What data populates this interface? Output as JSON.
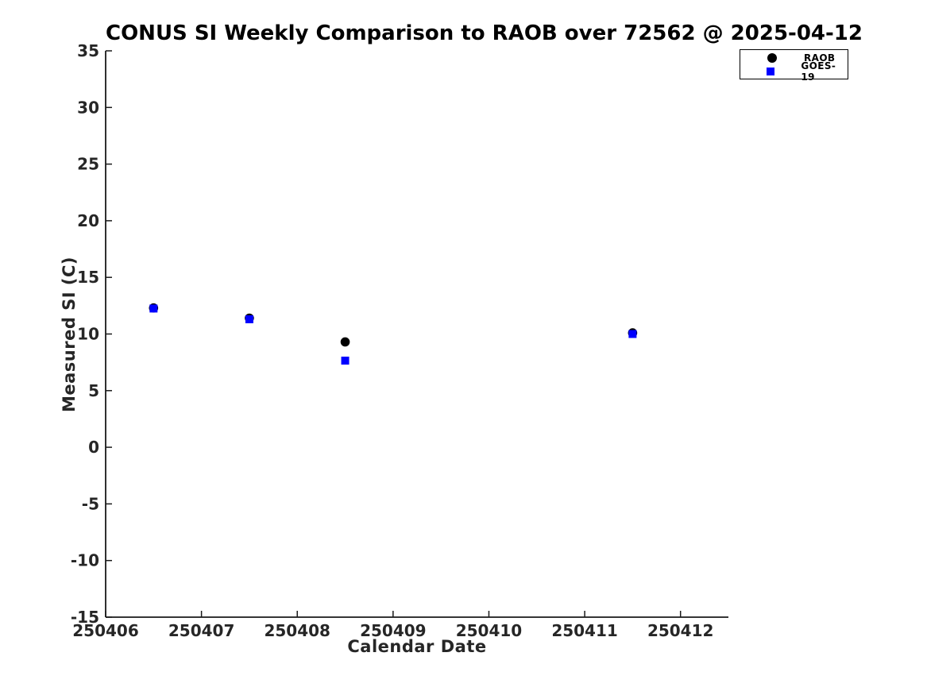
{
  "page": {
    "background": "#ffffff"
  },
  "chart_data": {
    "type": "scatter",
    "title": "CONUS SI Weekly Comparison to RAOB over 72562 @ 2025-04-12",
    "xlabel": "Calendar Date",
    "ylabel": "Measured SI (C)",
    "xlim": [
      250406,
      250412.5
    ],
    "ylim": [
      -15,
      35
    ],
    "xticks": [
      250406,
      250407,
      250408,
      250409,
      250410,
      250411,
      250412
    ],
    "yticks": [
      -15,
      -10,
      -5,
      0,
      5,
      10,
      15,
      20,
      25,
      30,
      35
    ],
    "grid": false,
    "legend_position": "top-right",
    "axis_color": "#1a1a1a",
    "tick_label_color": "#262626",
    "series": [
      {
        "name": "RAOB",
        "marker": "circle",
        "color": "#000000",
        "points": [
          [
            250406.5,
            12.3
          ],
          [
            250407.5,
            11.4
          ],
          [
            250408.5,
            9.3
          ],
          [
            250411.5,
            10.1
          ]
        ]
      },
      {
        "name": "GOES-19",
        "marker": "square",
        "color": "#0000ff",
        "points": [
          [
            250406.5,
            12.25
          ],
          [
            250407.5,
            11.3
          ],
          [
            250408.5,
            7.65
          ],
          [
            250411.5,
            10.0
          ]
        ]
      }
    ]
  }
}
